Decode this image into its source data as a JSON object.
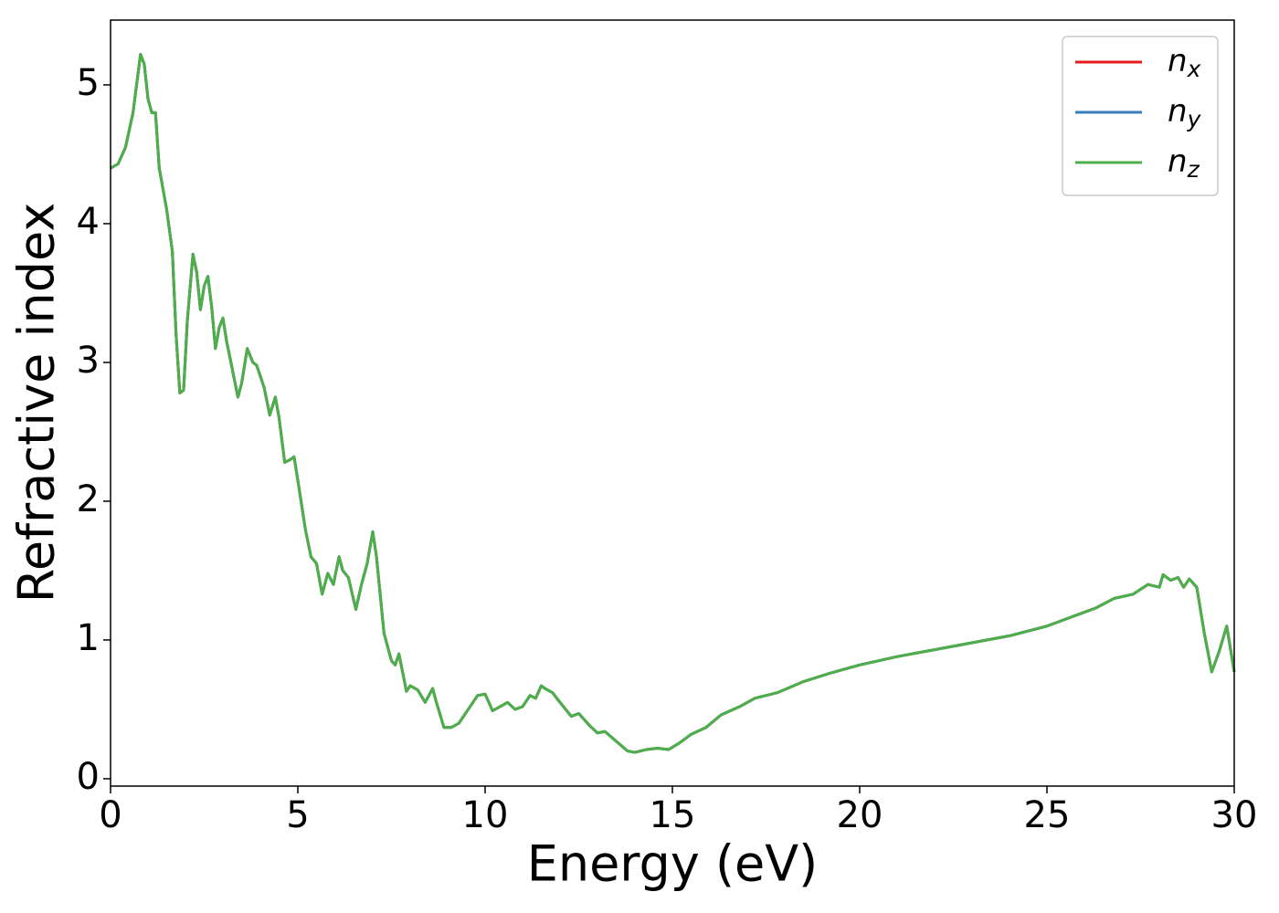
{
  "chart_data": {
    "type": "line",
    "xlabel": "Energy (eV)",
    "ylabel": "Refractive index",
    "x": [
      0,
      0.2,
      0.4,
      0.6,
      0.8,
      0.9,
      1.0,
      1.1,
      1.2,
      1.3,
      1.5,
      1.65,
      1.75,
      1.85,
      1.95,
      2.05,
      2.2,
      2.3,
      2.4,
      2.5,
      2.6,
      2.7,
      2.8,
      2.9,
      3.0,
      3.1,
      3.2,
      3.4,
      3.5,
      3.65,
      3.8,
      3.9,
      4.1,
      4.25,
      4.4,
      4.5,
      4.65,
      4.8,
      4.9,
      5.0,
      5.2,
      5.35,
      5.5,
      5.65,
      5.8,
      5.95,
      6.1,
      6.2,
      6.35,
      6.55,
      6.7,
      6.85,
      7.0,
      7.1,
      7.3,
      7.5,
      7.6,
      7.7,
      7.9,
      8.0,
      8.2,
      8.4,
      8.6,
      8.7,
      8.9,
      9.1,
      9.3,
      9.6,
      9.8,
      10.0,
      10.2,
      10.4,
      10.6,
      10.8,
      11.0,
      11.2,
      11.35,
      11.5,
      11.6,
      11.8,
      12.0,
      12.3,
      12.5,
      12.8,
      13.0,
      13.2,
      13.5,
      13.8,
      14.0,
      14.3,
      14.6,
      14.9,
      15.2,
      15.5,
      15.9,
      16.3,
      16.8,
      17.2,
      17.8,
      18.5,
      19.2,
      20.0,
      21.0,
      22.0,
      23.0,
      24.0,
      25.0,
      25.8,
      26.3,
      26.8,
      27.3,
      27.7,
      28.0,
      28.1,
      28.3,
      28.5,
      28.65,
      28.8,
      29.0,
      29.2,
      29.4,
      29.6,
      29.8,
      30.0
    ],
    "series": [
      {
        "name": "nx",
        "color": "#e41a1c",
        "values": [
          4.4,
          4.43,
          4.55,
          4.8,
          5.22,
          5.15,
          4.9,
          4.8,
          4.8,
          4.4,
          4.1,
          3.8,
          3.2,
          2.78,
          2.8,
          3.3,
          3.78,
          3.65,
          3.38,
          3.55,
          3.62,
          3.4,
          3.1,
          3.25,
          3.32,
          3.15,
          3.02,
          2.75,
          2.85,
          3.1,
          3.0,
          2.98,
          2.82,
          2.62,
          2.75,
          2.6,
          2.28,
          2.3,
          2.32,
          2.15,
          1.8,
          1.6,
          1.55,
          1.33,
          1.48,
          1.4,
          1.6,
          1.5,
          1.45,
          1.22,
          1.4,
          1.55,
          1.78,
          1.6,
          1.05,
          0.85,
          0.82,
          0.9,
          0.63,
          0.67,
          0.64,
          0.55,
          0.65,
          0.55,
          0.37,
          0.37,
          0.4,
          0.52,
          0.6,
          0.61,
          0.49,
          0.52,
          0.55,
          0.5,
          0.52,
          0.6,
          0.58,
          0.67,
          0.65,
          0.62,
          0.55,
          0.45,
          0.47,
          0.38,
          0.33,
          0.34,
          0.27,
          0.2,
          0.19,
          0.21,
          0.22,
          0.21,
          0.26,
          0.32,
          0.37,
          0.46,
          0.52,
          0.58,
          0.62,
          0.7,
          0.76,
          0.82,
          0.88,
          0.93,
          0.98,
          1.03,
          1.1,
          1.18,
          1.23,
          1.3,
          1.33,
          1.4,
          1.38,
          1.47,
          1.43,
          1.45,
          1.38,
          1.44,
          1.38,
          1.05,
          0.77,
          0.92,
          1.1,
          0.77
        ]
      },
      {
        "name": "ny",
        "color": "#377eb8",
        "values": [
          4.4,
          4.43,
          4.55,
          4.8,
          5.22,
          5.15,
          4.9,
          4.8,
          4.8,
          4.4,
          4.1,
          3.8,
          3.2,
          2.78,
          2.8,
          3.3,
          3.78,
          3.65,
          3.38,
          3.55,
          3.62,
          3.4,
          3.1,
          3.25,
          3.32,
          3.15,
          3.02,
          2.75,
          2.85,
          3.1,
          3.0,
          2.98,
          2.82,
          2.62,
          2.75,
          2.6,
          2.28,
          2.3,
          2.32,
          2.15,
          1.8,
          1.6,
          1.55,
          1.33,
          1.48,
          1.4,
          1.6,
          1.5,
          1.45,
          1.22,
          1.4,
          1.55,
          1.78,
          1.6,
          1.05,
          0.85,
          0.82,
          0.9,
          0.63,
          0.67,
          0.64,
          0.55,
          0.65,
          0.55,
          0.37,
          0.37,
          0.4,
          0.52,
          0.6,
          0.61,
          0.49,
          0.52,
          0.55,
          0.5,
          0.52,
          0.6,
          0.58,
          0.67,
          0.65,
          0.62,
          0.55,
          0.45,
          0.47,
          0.38,
          0.33,
          0.34,
          0.27,
          0.2,
          0.19,
          0.21,
          0.22,
          0.21,
          0.26,
          0.32,
          0.37,
          0.46,
          0.52,
          0.58,
          0.62,
          0.7,
          0.76,
          0.82,
          0.88,
          0.93,
          0.98,
          1.03,
          1.1,
          1.18,
          1.23,
          1.3,
          1.33,
          1.4,
          1.38,
          1.47,
          1.43,
          1.45,
          1.38,
          1.44,
          1.38,
          1.05,
          0.77,
          0.92,
          1.1,
          0.77
        ]
      },
      {
        "name": "nz",
        "color": "#4daf4a",
        "values": [
          4.4,
          4.43,
          4.55,
          4.8,
          5.22,
          5.15,
          4.9,
          4.8,
          4.8,
          4.4,
          4.1,
          3.8,
          3.2,
          2.78,
          2.8,
          3.3,
          3.78,
          3.65,
          3.38,
          3.55,
          3.62,
          3.4,
          3.1,
          3.25,
          3.32,
          3.15,
          3.02,
          2.75,
          2.85,
          3.1,
          3.0,
          2.98,
          2.82,
          2.62,
          2.75,
          2.6,
          2.28,
          2.3,
          2.32,
          2.15,
          1.8,
          1.6,
          1.55,
          1.33,
          1.48,
          1.4,
          1.6,
          1.5,
          1.45,
          1.22,
          1.4,
          1.55,
          1.78,
          1.6,
          1.05,
          0.85,
          0.82,
          0.9,
          0.63,
          0.67,
          0.64,
          0.55,
          0.65,
          0.55,
          0.37,
          0.37,
          0.4,
          0.52,
          0.6,
          0.61,
          0.49,
          0.52,
          0.55,
          0.5,
          0.52,
          0.6,
          0.58,
          0.67,
          0.65,
          0.62,
          0.55,
          0.45,
          0.47,
          0.38,
          0.33,
          0.34,
          0.27,
          0.2,
          0.19,
          0.21,
          0.22,
          0.21,
          0.26,
          0.32,
          0.37,
          0.46,
          0.52,
          0.58,
          0.62,
          0.7,
          0.76,
          0.82,
          0.88,
          0.93,
          0.98,
          1.03,
          1.1,
          1.18,
          1.23,
          1.3,
          1.33,
          1.4,
          1.38,
          1.47,
          1.43,
          1.45,
          1.38,
          1.44,
          1.38,
          1.05,
          0.77,
          0.92,
          1.1,
          0.77
        ]
      }
    ],
    "xlim": [
      0,
      30
    ],
    "xticks": [
      0,
      5,
      10,
      15,
      20,
      25,
      30
    ],
    "ylim": [
      -0.053,
      5.467
    ],
    "yticks": [
      0,
      1,
      2,
      3,
      4,
      5
    ],
    "legend": "upper right"
  }
}
